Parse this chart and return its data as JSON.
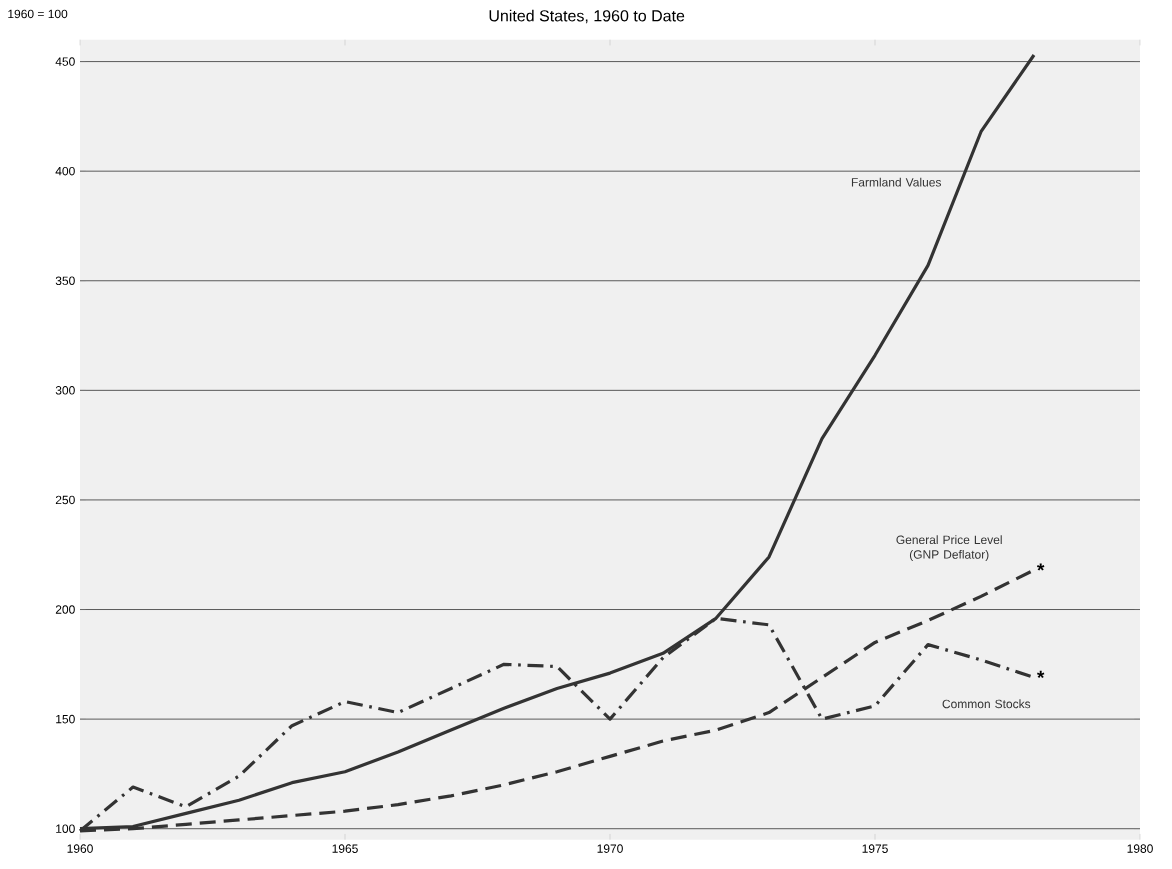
{
  "chart_data": {
    "type": "line",
    "title": "United States, 1960 to Date",
    "ylabel": "1960 = 100",
    "x": [
      1960,
      1961,
      1962,
      1963,
      1964,
      1965,
      1966,
      1967,
      1968,
      1969,
      1970,
      1971,
      1972,
      1973,
      1974,
      1975,
      1976,
      1977,
      1978
    ],
    "series": [
      {
        "name": "Farmland Values",
        "color": "#333333",
        "line_style": "solid",
        "values": [
          100,
          101,
          107,
          113,
          121,
          126,
          135,
          145,
          155,
          164,
          171,
          180,
          196,
          224,
          278,
          316,
          357,
          418,
          453
        ]
      },
      {
        "name": "General Price Level (GNP Deflator)",
        "color": "#333333",
        "line_style": "dashed",
        "values": [
          99,
          100,
          102,
          104,
          106,
          108,
          111,
          115,
          120,
          126,
          133,
          140,
          145,
          153,
          169,
          185,
          195,
          206,
          218
        ]
      },
      {
        "name": "Common Stocks",
        "color": "#333333",
        "line_style": "dashdot",
        "values": [
          99,
          119,
          110,
          124,
          147,
          158,
          153,
          164,
          175,
          174,
          150,
          178,
          196,
          193,
          150,
          156,
          184,
          177,
          169
        ]
      }
    ],
    "annotations": [
      {
        "text": "*",
        "x": 1978,
        "y": 218
      },
      {
        "text": "*",
        "x": 1978,
        "y": 169
      }
    ],
    "xlim": [
      1960,
      1980
    ],
    "ylim": [
      95,
      460
    ],
    "xticks": [
      1960,
      1965,
      1970,
      1975,
      1980
    ],
    "yticks": [
      100,
      150,
      200,
      250,
      300,
      350,
      400,
      450
    ],
    "grid": "y",
    "marker": "none"
  }
}
